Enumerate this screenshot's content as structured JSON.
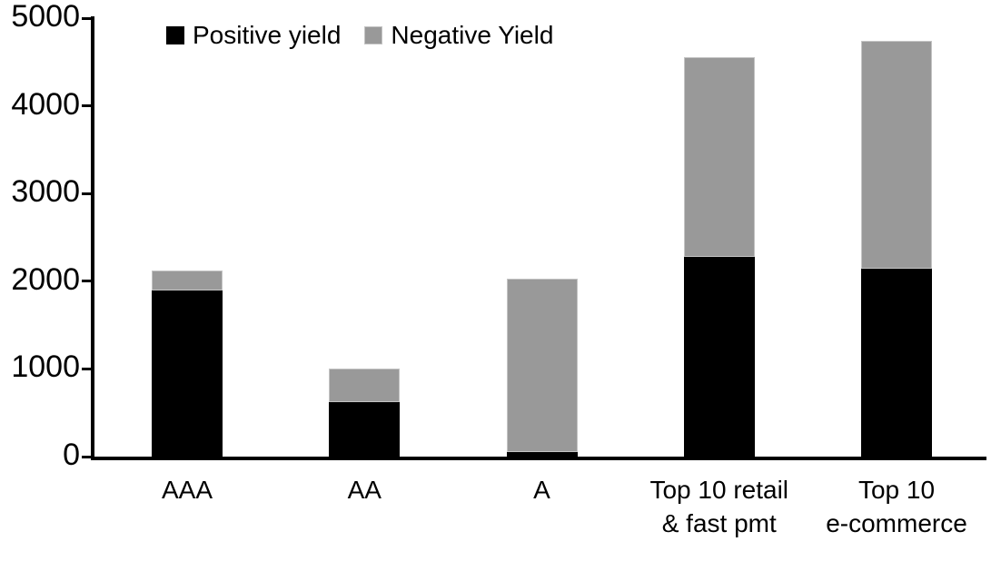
{
  "chart_data": {
    "type": "bar",
    "stacked": true,
    "title": "",
    "xlabel": "",
    "ylabel": "",
    "categories": [
      "AAA",
      "AA",
      "A",
      "Top 10 retail\n& fast pmt",
      "Top 10\ne-commerce"
    ],
    "series": [
      {
        "name": "Positive yield",
        "color": "#000000",
        "values": [
          1890,
          620,
          50,
          2280,
          2140
        ]
      },
      {
        "name": "Negative Yield",
        "color": "#999999",
        "values": [
          230,
          380,
          1980,
          2270,
          2600
        ]
      }
    ],
    "totals": [
      2120,
      1000,
      2030,
      4550,
      4740
    ],
    "ylim": [
      0,
      5000
    ],
    "yticks": [
      "0",
      "1000",
      "2000",
      "3000",
      "4000",
      "5000"
    ],
    "grid": false,
    "legend_position": "top",
    "axis_color": "#000000",
    "background_color": "#ffffff"
  }
}
